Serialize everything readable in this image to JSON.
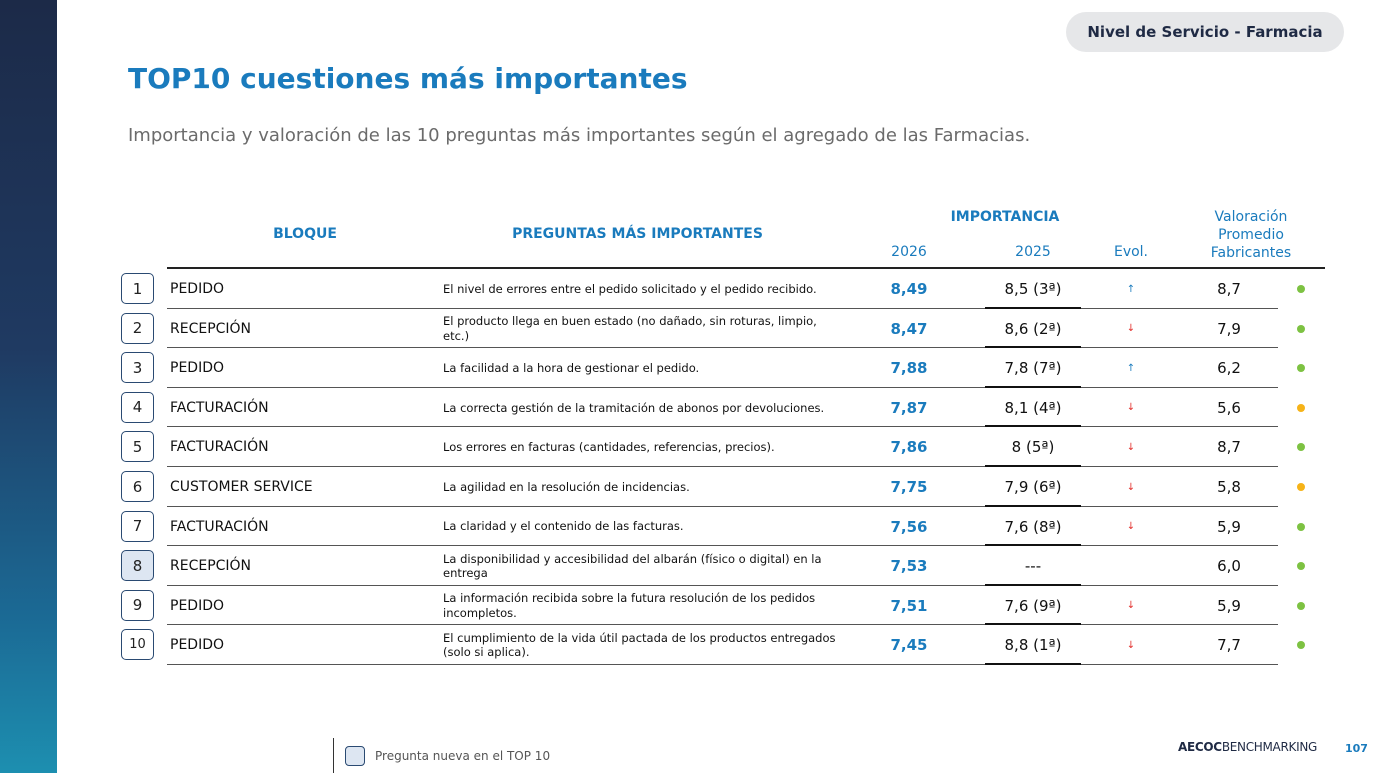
{
  "section_label": "Nivel de Servicio - Farmacia",
  "title": "TOP10 cuestiones más importantes",
  "subtitle": "Importancia y valoración de las 10 preguntas más importantes según el agregado de las Farmacias.",
  "table": {
    "headers": {
      "bloque": "BLOQUE",
      "preguntas": "PREGUNTAS MÁS IMPORTANTES",
      "importancia": "IMPORTANCIA",
      "y2026": "2026",
      "y2025": "2025",
      "evol": "Evol.",
      "valoracion": "Valoración Promedio Fabricantes"
    },
    "rows": [
      {
        "rank": "1",
        "bloque": "PEDIDO",
        "pregunta": "El nivel de errores entre el pedido solicitado y el pedido recibido.",
        "imp_2026": "8,49",
        "imp_2025": "8,5 (3ª)",
        "evol": "up",
        "valoracion": "8,7",
        "status": "green",
        "new": false
      },
      {
        "rank": "2",
        "bloque": "RECEPCIÓN",
        "pregunta": "El producto llega en buen estado (no dañado, sin roturas, limpio, etc.)",
        "imp_2026": "8,47",
        "imp_2025": "8,6 (2ª)",
        "evol": "down",
        "valoracion": "7,9",
        "status": "green",
        "new": false
      },
      {
        "rank": "3",
        "bloque": "PEDIDO",
        "pregunta": "La facilidad a la hora de gestionar el pedido.",
        "imp_2026": "7,88",
        "imp_2025": "7,8 (7ª)",
        "evol": "up",
        "valoracion": "6,2",
        "status": "green",
        "new": false
      },
      {
        "rank": "4",
        "bloque": "FACTURACIÓN",
        "pregunta": "La correcta gestión de la tramitación de abonos por devoluciones.",
        "imp_2026": "7,87",
        "imp_2025": "8,1 (4ª)",
        "evol": "down",
        "valoracion": "5,6",
        "status": "amber",
        "new": false
      },
      {
        "rank": "5",
        "bloque": "FACTURACIÓN",
        "pregunta": "Los errores en facturas (cantidades, referencias, precios).",
        "imp_2026": "7,86",
        "imp_2025": "8 (5ª)",
        "evol": "down",
        "valoracion": "8,7",
        "status": "green",
        "new": false
      },
      {
        "rank": "6",
        "bloque": "CUSTOMER SERVICE",
        "pregunta": "La agilidad en la resolución de incidencias.",
        "imp_2026": "7,75",
        "imp_2025": "7,9 (6ª)",
        "evol": "down",
        "valoracion": "5,8",
        "status": "amber",
        "new": false
      },
      {
        "rank": "7",
        "bloque": "FACTURACIÓN",
        "pregunta": "La claridad y el contenido de las facturas.",
        "imp_2026": "7,56",
        "imp_2025": "7,6 (8ª)",
        "evol": "down",
        "valoracion": "5,9",
        "status": "green",
        "new": false
      },
      {
        "rank": "8",
        "bloque": "RECEPCIÓN",
        "pregunta": "La disponibilidad y accesibilidad del albarán (físico o digital) en la entrega",
        "imp_2026": "7,53",
        "imp_2025": "---",
        "evol": "",
        "valoracion": "6,0",
        "status": "green",
        "new": true
      },
      {
        "rank": "9",
        "bloque": "PEDIDO",
        "pregunta": "La información recibida sobre la futura resolución de los pedidos incompletos.",
        "imp_2026": "7,51",
        "imp_2025": "7,6 (9ª)",
        "evol": "down",
        "valoracion": "5,9",
        "status": "green",
        "new": false
      },
      {
        "rank": "10",
        "bloque": "PEDIDO",
        "pregunta": "El cumplimiento de la vida útil pactada de los productos entregados (solo si aplica).",
        "imp_2026": "7,45",
        "imp_2025": "8,8 (1ª)",
        "evol": "down",
        "valoracion": "7,7",
        "status": "green",
        "new": false
      }
    ]
  },
  "legend": {
    "new_question": "Pregunta nueva en el TOP 10"
  },
  "footer": {
    "brand_bold": "AECOC",
    "brand_rest": "BENCHMARKING",
    "page_number": "107"
  },
  "colors": {
    "accent": "#1a7bbd",
    "green": "#7dc242",
    "amber": "#f6b318",
    "up": "#1a7bbd",
    "down": "#e2302d"
  },
  "icons": {
    "up": "arrow-up-icon",
    "down": "arrow-down-icon"
  }
}
